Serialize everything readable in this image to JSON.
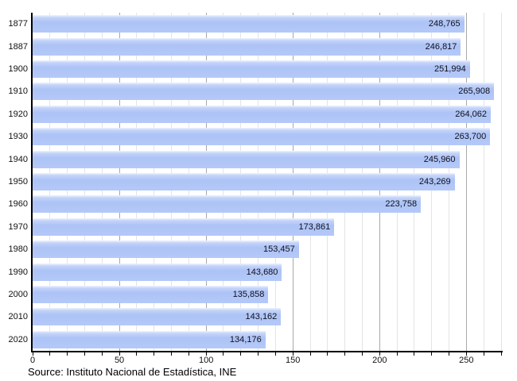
{
  "chart_data": {
    "type": "bar",
    "orientation": "horizontal",
    "title": "",
    "xlabel": "",
    "ylabel": "",
    "categories": [
      "1877",
      "1887",
      "1900",
      "1910",
      "1920",
      "1930",
      "1940",
      "1950",
      "1960",
      "1970",
      "1980",
      "1990",
      "2000",
      "2010",
      "2020"
    ],
    "values": [
      248765,
      246817,
      251994,
      265908,
      264062,
      263700,
      245960,
      243269,
      223758,
      173861,
      153457,
      143680,
      135858,
      143162,
      134176
    ],
    "value_labels": [
      "248,765",
      "246,817",
      "251,994",
      "265,908",
      "264,062",
      "263,700",
      "245,960",
      "243,269",
      "223,758",
      "173,861",
      "153,457",
      "143,680",
      "135,858",
      "143,162",
      "134,176"
    ],
    "xlim": [
      0,
      270000
    ],
    "x_tick_values": [
      0,
      50000,
      100000,
      150000,
      200000,
      250000
    ],
    "x_tick_labels": [
      "0",
      "50",
      "100",
      "150",
      "200",
      "250"
    ],
    "minor_tick_step": 10000,
    "grid": true,
    "legend": "none",
    "colors": {
      "bar": "#b2c7f7",
      "bar_gloss_top": "#eef3fe",
      "value_text": "#10101c",
      "axis": "#000000",
      "minor_grid": "#e4e4e4",
      "major_grid": "#a8a8a8"
    }
  },
  "source_note": "Source: Instituto Nacional de Estadística, INE"
}
